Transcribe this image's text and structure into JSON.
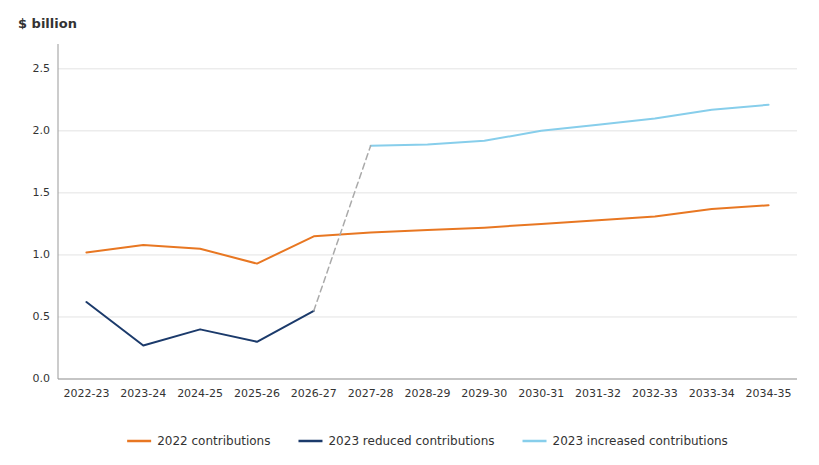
{
  "chart_data": {
    "type": "line",
    "y_label": "$ billion",
    "categories": [
      "2022-23",
      "2023-24",
      "2024-25",
      "2025-26",
      "2026-27",
      "2027-28",
      "2028-29",
      "2029-30",
      "2030-31",
      "2031-32",
      "2032-33",
      "2033-34",
      "2034-35"
    ],
    "series": [
      {
        "name": "2022 contributions",
        "color": "#E87722",
        "values": [
          1.02,
          1.08,
          1.05,
          0.93,
          1.15,
          1.18,
          1.2,
          1.22,
          1.25,
          1.28,
          1.31,
          1.37,
          1.4
        ]
      },
      {
        "name": "2023 reduced contributions",
        "color": "#1B3A6B",
        "values": [
          0.62,
          0.27,
          0.4,
          0.3,
          0.55,
          null,
          null,
          null,
          null,
          null,
          null,
          null,
          null
        ]
      },
      {
        "name": "2023 increased contributions",
        "color": "#87CEEB",
        "values": [
          null,
          null,
          null,
          null,
          null,
          1.88,
          1.89,
          1.92,
          2.0,
          2.05,
          2.1,
          2.17,
          2.21
        ]
      },
      {
        "color": "#AAAAAA",
        "line_style": "dashed",
        "values": [
          null,
          null,
          null,
          null,
          0.55,
          1.88,
          null,
          null,
          null,
          null,
          null,
          null,
          null
        ]
      }
    ],
    "ylim": [
      0.0,
      2.7
    ],
    "yticks": [
      {
        "value": 0.0,
        "label": "0.0"
      },
      0.5,
      {
        "value": 1.0,
        "label": "1.0"
      },
      1.5,
      {
        "value": 2.0,
        "label": "2.0"
      },
      2.5
    ],
    "grid": true,
    "legend": "bottom"
  }
}
